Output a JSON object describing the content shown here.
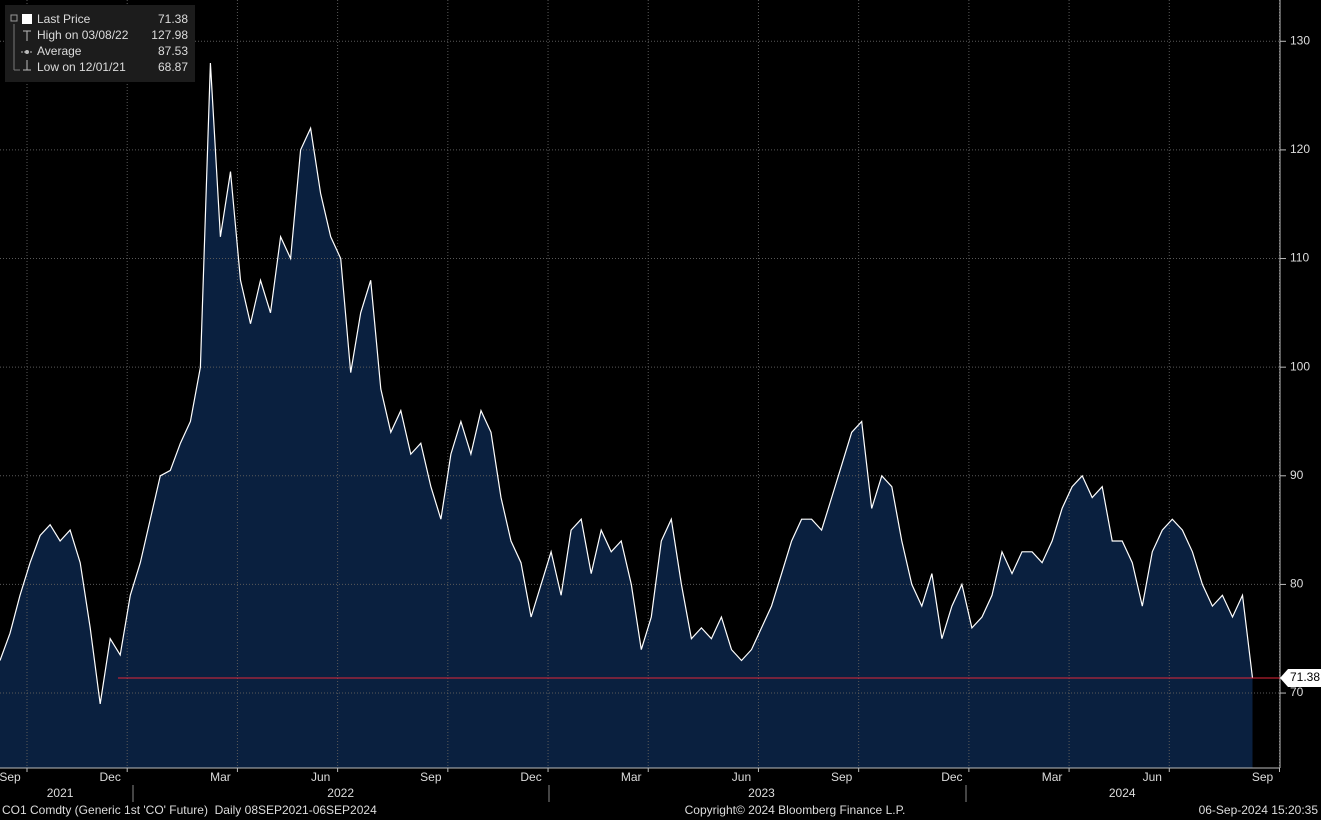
{
  "chart_data": {
    "type": "area",
    "series": [
      {
        "color": "#ffffff",
        "fill": "#0a203f",
        "values": [
          73,
          75.5,
          79,
          82,
          84.5,
          85.5,
          84,
          85,
          82,
          76,
          69,
          75,
          73.5,
          79,
          82,
          86,
          90,
          90.5,
          93,
          95,
          100,
          128,
          112,
          118,
          108,
          104,
          108,
          105,
          112,
          110,
          120,
          122,
          116,
          112,
          110,
          99.5,
          105,
          108,
          98,
          94,
          96,
          92,
          93,
          89,
          86,
          92,
          95,
          92,
          96,
          94,
          88,
          84,
          82,
          77,
          80,
          83,
          79,
          85,
          86,
          81,
          85,
          83,
          84,
          80,
          74,
          77,
          84,
          86,
          80,
          75,
          76,
          75,
          77,
          74,
          73,
          74,
          76,
          78,
          81,
          84,
          86,
          86,
          85,
          88,
          91,
          94,
          95,
          87,
          90,
          89,
          84,
          80,
          78,
          81,
          75,
          78,
          80,
          76,
          77,
          79,
          83,
          81,
          83,
          83,
          82,
          84,
          87,
          89,
          90,
          88,
          89,
          84,
          84,
          82,
          78,
          83,
          85,
          86,
          85,
          83,
          80,
          78,
          79,
          77,
          79,
          71.38
        ]
      }
    ],
    "categories": [
      "Sep",
      null,
      null,
      null,
      null,
      null,
      null,
      null,
      null,
      null,
      "Dec",
      null,
      null,
      null,
      null,
      null,
      null,
      null,
      null,
      null,
      null,
      "Mar",
      null,
      null,
      null,
      null,
      null,
      null,
      null,
      null,
      null,
      "Jun",
      null,
      null,
      null,
      null,
      null,
      null,
      null,
      null,
      null,
      null,
      "Sep",
      null,
      null,
      null,
      null,
      null,
      null,
      null,
      null,
      null,
      "Dec",
      null,
      null,
      null,
      null,
      null,
      null,
      null,
      null,
      null,
      "Mar",
      null,
      null,
      null,
      null,
      null,
      null,
      null,
      null,
      null,
      null,
      "Jun",
      null,
      null,
      null,
      null,
      null,
      null,
      null,
      null,
      null,
      "Sep",
      null,
      null,
      null,
      null,
      null,
      null,
      null,
      null,
      null,
      null,
      "Dec",
      null,
      null,
      null,
      null,
      null,
      null,
      null,
      null,
      null,
      "Mar",
      null,
      null,
      null,
      null,
      null,
      null,
      null,
      null,
      null,
      "Jun",
      null,
      null,
      null,
      null,
      null,
      null,
      null,
      null,
      null,
      null,
      "Sep"
    ],
    "year_categories": [
      null,
      null,
      null,
      null,
      null,
      "2021",
      null,
      null,
      null,
      null,
      null,
      null,
      null,
      null,
      null,
      null,
      null,
      null,
      null,
      null,
      null,
      null,
      null,
      null,
      null,
      null,
      null,
      null,
      null,
      null,
      null,
      null,
      null,
      "2022",
      null,
      null,
      null,
      null,
      null,
      null,
      null,
      null,
      null,
      null,
      null,
      null,
      null,
      null,
      null,
      null,
      null,
      null,
      null,
      null,
      null,
      null,
      null,
      null,
      null,
      null,
      null,
      null,
      null,
      null,
      null,
      null,
      null,
      null,
      null,
      null,
      null,
      null,
      null,
      null,
      null,
      "2023",
      null,
      null,
      null,
      null,
      null,
      null,
      null,
      null,
      null,
      null,
      null,
      null,
      null,
      null,
      null,
      null,
      null,
      null,
      null,
      null,
      null,
      null,
      null,
      null,
      null,
      null,
      null,
      null,
      null,
      null,
      null,
      null,
      null,
      null,
      null,
      "2024",
      null,
      null,
      null,
      null,
      null,
      null,
      null,
      null,
      null,
      null,
      null,
      null,
      null,
      null
    ],
    "ylim": [
      63.1,
      133.8
    ],
    "yticks": [
      70,
      80,
      90,
      100,
      110,
      120,
      130
    ],
    "grid": true,
    "last_line_color": "#e0263a",
    "stats": [
      {
        "label": "Last Price",
        "value": 71.38
      },
      {
        "label": "High on 03/08/22",
        "value": 127.98
      },
      {
        "label": "Average",
        "value": 87.53
      },
      {
        "label": "Low on 12/01/21",
        "value": 68.87
      }
    ],
    "footer": {
      "left": "CO1 Comdty (Generic 1st 'CO' Future)  Daily 08SEP2021-06SEP2024",
      "center": "Copyright© 2024 Bloomberg Finance L.P.",
      "right": "06-Sep-2024 15:20:35"
    }
  }
}
